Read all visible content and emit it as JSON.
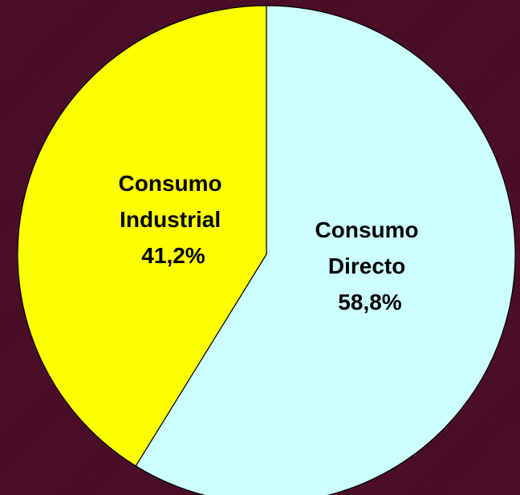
{
  "chart_data": {
    "type": "pie",
    "slices": [
      {
        "label_lines": [
          "Consumo",
          "Directo"
        ],
        "value_label": "58,8%",
        "value": 58.8,
        "color": "#ccffff"
      },
      {
        "label_lines": [
          "Consumo",
          "Industrial"
        ],
        "value_label": "41,2%",
        "value": 41.2,
        "color": "#ffff00"
      }
    ],
    "start_angle_deg": 0,
    "direction": "clockwise",
    "legend": "none",
    "outline_color": "#000000"
  }
}
